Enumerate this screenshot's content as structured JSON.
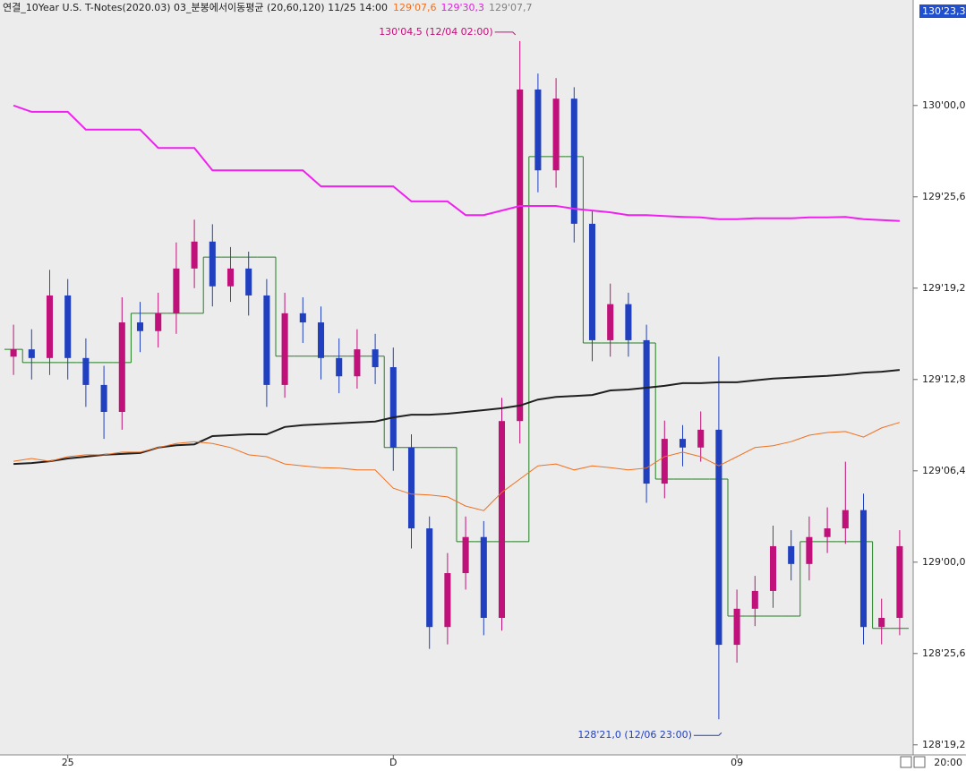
{
  "chart_data": {
    "type": "candlestick",
    "title": "연결_10Year U.S. T-Notes(2020.03) 03_분봉에서이동평균  (20,60,120) 11/25 14:00",
    "header_values": [
      "129'07,6",
      "129'30,3",
      "129'07,7"
    ],
    "header_value_colors": [
      "#f07020",
      "#e020e0",
      "#808080"
    ],
    "price_marker": "130'23,3",
    "x_axis_end_label": "20:00",
    "annotations": [
      {
        "text": "130'04,5 (12/04 02:00)",
        "color": "#c0107a"
      },
      {
        "text": "128'21,0 (12/06 23:00)",
        "color": "#2040c0"
      }
    ],
    "categories": [
      null,
      null,
      null,
      "25",
      null,
      null,
      null,
      null,
      null,
      null,
      null,
      null,
      null,
      null,
      null,
      null,
      null,
      null,
      null,
      null,
      null,
      "D",
      null,
      null,
      null,
      null,
      null,
      null,
      null,
      null,
      null,
      null,
      null,
      null,
      null,
      null,
      null,
      null,
      null,
      null,
      "09",
      null,
      null,
      null,
      null,
      null,
      null,
      null,
      null,
      null
    ],
    "up_color": "#c0107a",
    "down_color": "#2040c0",
    "open": [
      129.45,
      129.466,
      129.447,
      129.584,
      129.447,
      129.388,
      129.329,
      129.525,
      129.506,
      129.545,
      129.643,
      129.702,
      129.604,
      129.643,
      129.584,
      129.388,
      129.545,
      129.525,
      129.447,
      129.407,
      129.466,
      129.427,
      129.251,
      129.074,
      128.858,
      128.976,
      129.055,
      128.878,
      129.309,
      130.035,
      129.858,
      130.015,
      129.741,
      129.486,
      129.565,
      129.486,
      129.172,
      129.27,
      129.251,
      129.29,
      128.819,
      128.898,
      128.937,
      129.035,
      128.996,
      129.055,
      129.074,
      129.114,
      128.858,
      128.878
    ],
    "high": [
      129.52,
      129.51,
      129.64,
      129.62,
      129.49,
      129.43,
      129.58,
      129.57,
      129.59,
      129.7,
      129.75,
      129.74,
      129.69,
      129.68,
      129.62,
      129.59,
      129.58,
      129.56,
      129.49,
      129.51,
      129.5,
      129.47,
      129.28,
      129.1,
      129.02,
      129.1,
      129.09,
      129.36,
      130.141,
      130.07,
      130.06,
      130.04,
      129.77,
      129.61,
      129.59,
      129.52,
      129.31,
      129.3,
      129.33,
      129.45,
      128.94,
      128.97,
      129.08,
      129.07,
      129.1,
      129.12,
      129.22,
      129.15,
      128.92,
      129.07
    ],
    "low": [
      129.41,
      129.4,
      129.41,
      129.4,
      129.34,
      129.27,
      129.29,
      129.46,
      129.47,
      129.5,
      129.6,
      129.56,
      129.57,
      129.54,
      129.34,
      129.36,
      129.48,
      129.4,
      129.37,
      129.38,
      129.39,
      129.2,
      129.03,
      128.81,
      128.82,
      128.94,
      128.84,
      128.85,
      129.26,
      129.81,
      129.82,
      129.7,
      129.44,
      129.45,
      129.45,
      129.13,
      129.14,
      129.21,
      129.22,
      128.656,
      128.78,
      128.86,
      128.9,
      128.96,
      128.96,
      129.02,
      129.04,
      128.82,
      128.82,
      128.84
    ],
    "close": [
      129.466,
      129.447,
      129.584,
      129.447,
      129.388,
      129.329,
      129.525,
      129.506,
      129.545,
      129.643,
      129.702,
      129.604,
      129.643,
      129.584,
      129.388,
      129.545,
      129.525,
      129.447,
      129.407,
      129.466,
      129.427,
      129.251,
      129.074,
      128.858,
      128.976,
      129.055,
      128.878,
      129.309,
      130.035,
      129.858,
      130.015,
      129.741,
      129.486,
      129.565,
      129.486,
      129.172,
      129.27,
      129.251,
      129.29,
      128.819,
      128.898,
      128.937,
      129.035,
      128.996,
      129.055,
      129.074,
      129.114,
      128.858,
      128.878,
      129.035
    ],
    "lines": [
      {
        "color": "#f020f0",
        "width": 2,
        "values": [
          130.0,
          129.986,
          129.986,
          129.986,
          129.947,
          129.947,
          129.947,
          129.947,
          129.907,
          129.907,
          129.907,
          129.858,
          129.858,
          129.858,
          129.858,
          129.858,
          129.858,
          129.823,
          129.823,
          129.823,
          129.823,
          129.823,
          129.79,
          129.79,
          129.79,
          129.76,
          129.76,
          129.77,
          129.78,
          129.78,
          129.78,
          129.774,
          129.77,
          129.766,
          129.76,
          129.76,
          129.758,
          129.756,
          129.755,
          129.751,
          129.751,
          129.753,
          129.753,
          129.753,
          129.755,
          129.755,
          129.756,
          129.751,
          129.749,
          129.747
        ]
      },
      {
        "color": "#202020",
        "width": 2,
        "values": [
          129.215,
          129.217,
          129.221,
          129.227,
          129.231,
          129.235,
          129.237,
          129.239,
          129.251,
          129.256,
          129.258,
          129.276,
          129.278,
          129.28,
          129.28,
          129.296,
          129.3,
          129.302,
          129.304,
          129.306,
          129.308,
          129.317,
          129.323,
          129.323,
          129.325,
          129.329,
          129.333,
          129.337,
          129.343,
          129.356,
          129.362,
          129.364,
          129.366,
          129.376,
          129.378,
          129.382,
          129.386,
          129.392,
          129.392,
          129.394,
          129.394,
          129.398,
          129.402,
          129.404,
          129.406,
          129.408,
          129.411,
          129.415,
          129.417,
          129.421
        ]
      },
      {
        "color": "#f07020",
        "width": 1,
        "values": [
          129.221,
          129.227,
          129.221,
          129.231,
          129.235,
          129.235,
          129.241,
          129.241,
          129.251,
          129.26,
          129.264,
          129.26,
          129.251,
          129.235,
          129.231,
          129.215,
          129.211,
          129.207,
          129.206,
          129.202,
          129.202,
          129.162,
          129.149,
          129.147,
          129.143,
          129.123,
          129.113,
          129.153,
          129.182,
          129.211,
          129.215,
          129.202,
          129.211,
          129.207,
          129.202,
          129.206,
          129.231,
          129.241,
          129.231,
          129.211,
          129.231,
          129.251,
          129.255,
          129.264,
          129.278,
          129.284,
          129.286,
          129.274,
          129.294,
          129.306
        ]
      }
    ],
    "step_line": {
      "color": "#208020",
      "values": [
        129.466,
        129.437,
        129.437,
        129.437,
        129.437,
        129.437,
        129.437,
        129.545,
        129.545,
        129.545,
        129.545,
        129.668,
        129.668,
        129.668,
        129.668,
        129.451,
        129.451,
        129.451,
        129.451,
        129.451,
        129.451,
        129.251,
        129.251,
        129.251,
        129.251,
        129.045,
        129.045,
        129.045,
        129.045,
        129.888,
        129.888,
        129.888,
        129.48,
        129.48,
        129.48,
        129.48,
        129.182,
        129.182,
        129.182,
        129.182,
        128.882,
        128.882,
        128.882,
        128.882,
        129.045,
        129.045,
        129.045,
        129.045,
        128.855,
        128.855
      ]
    },
    "ylim": [
      128.578,
      130.231
    ],
    "yticks": [
      {
        "value": 130.0,
        "label": "130'00,0"
      },
      {
        "value": 129.8,
        "label": "129'25,6"
      },
      {
        "value": 129.6,
        "label": "129'19,2"
      },
      {
        "value": 129.4,
        "label": "129'12,8"
      },
      {
        "value": 129.2,
        "label": "129'06,4"
      },
      {
        "value": 129.0,
        "label": "129'00,0"
      },
      {
        "value": 128.8,
        "label": "128'25,6"
      },
      {
        "value": 128.6,
        "label": "128'19,2"
      }
    ]
  }
}
